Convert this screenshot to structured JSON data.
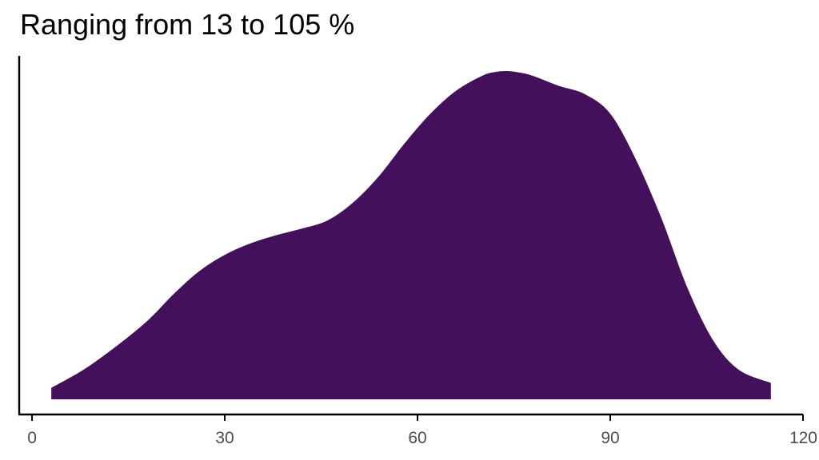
{
  "chart_data": {
    "type": "area",
    "title": "Ranging from 13 to 105 %",
    "xlabel": "",
    "ylabel": "",
    "xlim": [
      -2,
      120
    ],
    "x_ticks": [
      0,
      30,
      60,
      90,
      120
    ],
    "x_tick_labels": [
      "0",
      "30",
      "60",
      "90",
      "120"
    ],
    "grid": false,
    "legend": "none",
    "fill_color": "#440f5b",
    "series": [
      {
        "x": [
          3,
          8,
          13,
          18,
          22,
          26,
          30,
          34,
          38,
          42,
          46,
          50,
          54,
          58,
          62,
          66,
          70,
          72,
          74,
          76,
          78,
          82,
          86,
          90,
          94,
          98,
          102,
          106,
          110,
          115
        ],
        "y": [
          0.035,
          0.09,
          0.16,
          0.24,
          0.32,
          0.39,
          0.44,
          0.475,
          0.5,
          0.52,
          0.545,
          0.6,
          0.68,
          0.78,
          0.87,
          0.94,
          0.985,
          0.997,
          1.0,
          0.995,
          0.985,
          0.955,
          0.93,
          0.87,
          0.73,
          0.55,
          0.34,
          0.18,
          0.09,
          0.05
        ]
      }
    ]
  }
}
